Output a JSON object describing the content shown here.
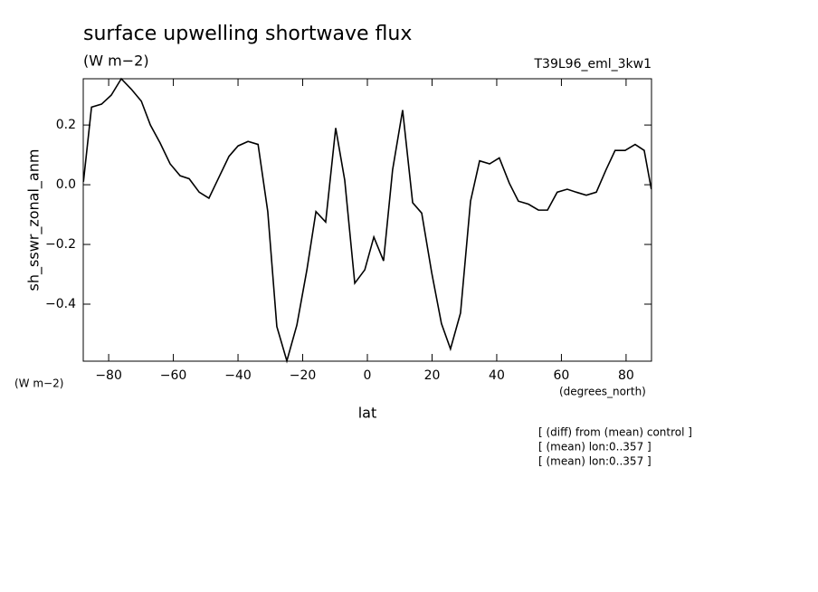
{
  "chart_data": {
    "type": "line",
    "title": "surface upwelling shortwave flux",
    "subtitle": "(W m−2)",
    "dataset": "T39L96_eml_3kw1",
    "y_label": "sh_sswr_zonal_anm",
    "y_units": "(W m−2)",
    "x_label": "lat",
    "x_units": "(degrees_north)",
    "notes": [
      "[ (diff) from (mean) control ]",
      "[ (mean) lon:0..357 ]",
      "[ (mean) lon:0..357 ]"
    ],
    "x": [
      -87.8,
      -85.3,
      -82.2,
      -79.2,
      -76.1,
      -73.0,
      -69.9,
      -67.1,
      -64.1,
      -61.0,
      -57.9,
      -55.1,
      -52.0,
      -49.0,
      -45.9,
      -42.8,
      -40.0,
      -36.9,
      -33.8,
      -30.8,
      -28.0,
      -24.9,
      -21.8,
      -18.7,
      -15.9,
      -12.9,
      -9.8,
      -7.0,
      -3.9,
      -0.8,
      2.0,
      5.0,
      7.8,
      10.9,
      14.0,
      16.8,
      19.9,
      22.9,
      25.7,
      28.8,
      31.9,
      34.7,
      37.8,
      40.8,
      43.9,
      46.7,
      49.8,
      52.9,
      55.7,
      58.7,
      61.8,
      64.6,
      67.7,
      70.8,
      73.8,
      76.6,
      79.7,
      82.8,
      85.6,
      87.8
    ],
    "series": [
      {
        "color": "#000000",
        "values": [
          0.01,
          0.26,
          0.27,
          0.3,
          0.355,
          0.32,
          0.28,
          0.2,
          0.14,
          0.07,
          0.03,
          0.02,
          -0.025,
          -0.045,
          0.025,
          0.095,
          0.13,
          0.145,
          0.135,
          -0.09,
          -0.475,
          -0.59,
          -0.47,
          -0.285,
          -0.09,
          -0.125,
          0.19,
          0.015,
          -0.33,
          -0.285,
          -0.175,
          -0.255,
          0.05,
          0.25,
          -0.06,
          -0.095,
          -0.295,
          -0.465,
          -0.55,
          -0.43,
          -0.055,
          0.08,
          0.07,
          0.09,
          0.005,
          -0.055,
          -0.065,
          -0.085,
          -0.085,
          -0.025,
          -0.015,
          -0.025,
          -0.035,
          -0.025,
          0.05,
          0.115,
          0.115,
          0.135,
          0.115,
          -0.015
        ]
      }
    ],
    "xlim": [
      -87.86,
      87.86
    ],
    "ylim": [
      -0.591,
      0.355
    ],
    "xticks": [
      {
        "value": -80,
        "label": "−80"
      },
      {
        "value": -60,
        "label": "−60"
      },
      {
        "value": -40,
        "label": "−40"
      },
      {
        "value": -20,
        "label": "−20"
      },
      0,
      20,
      40,
      60,
      80
    ],
    "yticks": [
      {
        "value": -0.4,
        "label": "−0.4"
      },
      {
        "value": -0.2,
        "label": "−0.2"
      },
      {
        "value": 0,
        "label": "0.0"
      },
      0.2
    ],
    "grid": false
  }
}
